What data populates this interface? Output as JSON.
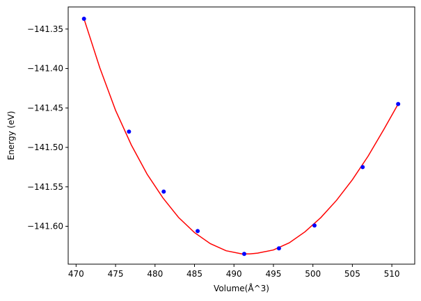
{
  "chart_data": {
    "type": "scatter",
    "title": "",
    "xlabel": "Volume(Å^3)",
    "ylabel": "Energy (eV)",
    "xlim": [
      469.0,
      512.9
    ],
    "ylim": [
      -141.648,
      -141.322
    ],
    "xticks": [
      470,
      475,
      480,
      485,
      490,
      495,
      500,
      505,
      510
    ],
    "yticks": [
      -141.6,
      -141.55,
      -141.5,
      -141.45,
      -141.4,
      -141.35
    ],
    "ytick_labels": [
      "−141.60",
      "−141.55",
      "−141.50",
      "−141.45",
      "−141.40",
      "−141.35"
    ],
    "grid": false,
    "legend": "none",
    "series": [
      {
        "kind": "points",
        "color": "#0000ff",
        "x": [
          471.0,
          476.7,
          481.1,
          485.4,
          491.3,
          495.7,
          500.2,
          506.3,
          510.8
        ],
        "y": [
          -141.337,
          -141.48,
          -141.556,
          -141.606,
          -141.635,
          -141.628,
          -141.599,
          -141.525,
          -141.445
        ]
      },
      {
        "kind": "fit",
        "color": "#ff0000",
        "x": [
          471.0,
          473.0,
          475.0,
          477.0,
          479.0,
          481.0,
          483.0,
          485.0,
          487.0,
          489.0,
          491.0,
          492.0,
          493.0,
          495.0,
          497.0,
          499.0,
          501.0,
          503.0,
          505.0,
          507.0,
          509.0,
          510.8
        ],
        "y": [
          -141.337,
          -141.399,
          -141.453,
          -141.497,
          -141.534,
          -141.564,
          -141.589,
          -141.608,
          -141.622,
          -141.631,
          -141.635,
          -141.635,
          -141.634,
          -141.63,
          -141.621,
          -141.607,
          -141.589,
          -141.567,
          -141.541,
          -141.511,
          -141.477,
          -141.445
        ]
      }
    ]
  }
}
